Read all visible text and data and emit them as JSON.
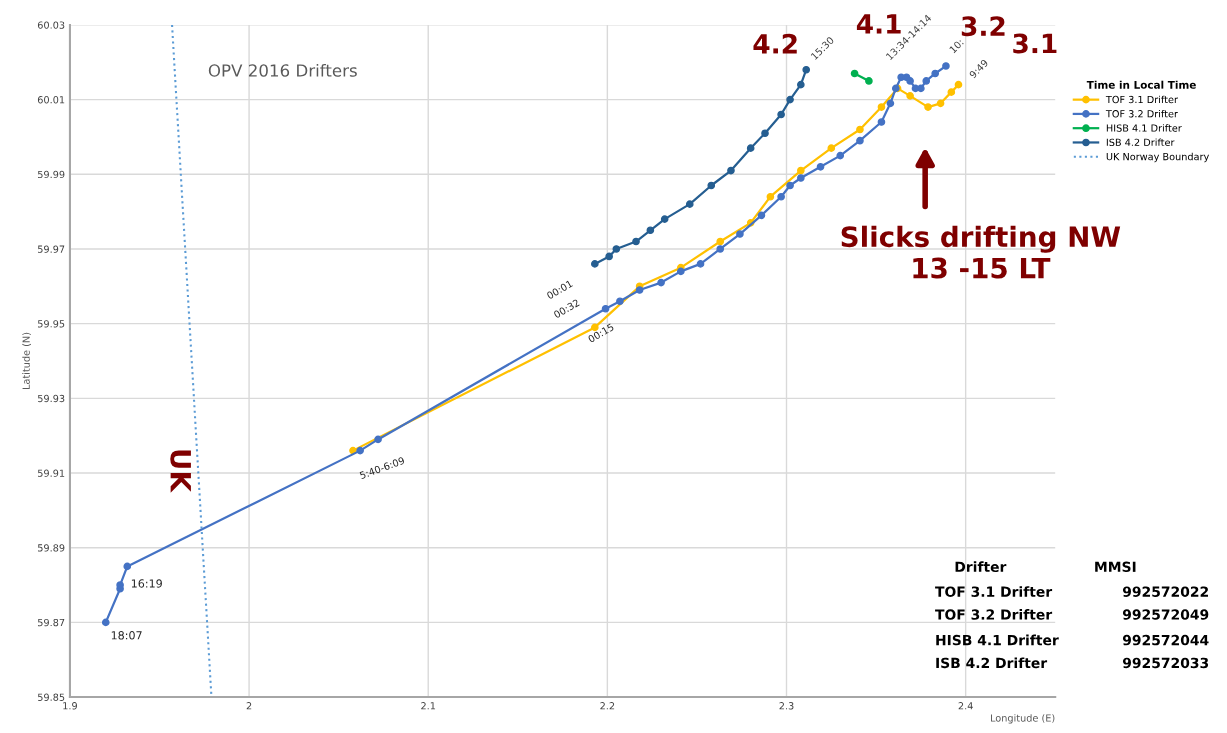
{
  "chart_data": {
    "type": "line",
    "title": "OPV 2016 Drifters",
    "xlabel": "Longitude (E)",
    "ylabel": "Latitude (N)",
    "legend_title": "Time in Local Time",
    "series": [
      {
        "name": "TOF 3.1 Drifter",
        "color": "#ffc000",
        "x": [
          2.058,
          2.193,
          2.218,
          2.241,
          2.263,
          2.28,
          2.291,
          2.308,
          2.325,
          2.341,
          2.353,
          2.362,
          2.369,
          2.379,
          2.386,
          2.392,
          2.396
        ],
        "values": [
          59.916,
          59.949,
          59.96,
          59.965,
          59.972,
          59.977,
          59.984,
          59.991,
          59.997,
          60.002,
          60.008,
          60.013,
          60.011,
          60.008,
          60.009,
          60.012,
          60.014
        ]
      },
      {
        "name": "TOF 3.2 Drifter",
        "color": "#4472c4",
        "x": [
          1.92,
          1.928,
          1.928,
          1.932,
          2.062,
          2.072,
          2.199,
          2.207,
          2.218,
          2.23,
          2.241,
          2.252,
          2.263,
          2.274,
          2.286,
          2.297,
          2.302,
          2.308,
          2.319,
          2.33,
          2.341,
          2.353,
          2.358,
          2.361,
          2.364,
          2.367,
          2.369,
          2.372,
          2.375,
          2.378,
          2.383,
          2.389
        ],
        "values": [
          59.87,
          59.879,
          59.88,
          59.885,
          59.916,
          59.919,
          59.954,
          59.956,
          59.959,
          59.961,
          59.964,
          59.966,
          59.97,
          59.974,
          59.979,
          59.984,
          59.987,
          59.989,
          59.992,
          59.995,
          59.999,
          60.004,
          60.009,
          60.013,
          60.016,
          60.016,
          60.015,
          60.013,
          60.013,
          60.015,
          60.017,
          60.019
        ]
      },
      {
        "name": "HISB 4.1 Drifter",
        "color": "#00b050",
        "x": [
          2.338,
          2.346
        ],
        "values": [
          60.017,
          60.015
        ]
      },
      {
        "name": "ISB 4.2 Drifter",
        "color": "#255e91",
        "x": [
          2.193,
          2.201,
          2.205,
          2.216,
          2.224,
          2.232,
          2.246,
          2.258,
          2.269,
          2.28,
          2.288,
          2.297,
          2.302,
          2.308,
          2.311
        ],
        "values": [
          59.966,
          59.968,
          59.97,
          59.972,
          59.975,
          59.978,
          59.982,
          59.987,
          59.991,
          59.997,
          60.001,
          60.006,
          60.01,
          60.014,
          60.018
        ]
      },
      {
        "name": "UK Norway Boundary",
        "color": "#5b9bd5",
        "marker": "none",
        "line_style": "dotted",
        "x": [
          1.957,
          1.979
        ],
        "values": [
          60.03,
          59.85
        ]
      }
    ],
    "marker": "circle",
    "line_style": "solid",
    "grid": true,
    "legend": "right",
    "xlim": [
      1.9,
      2.45
    ],
    "xticks": [
      1.9,
      2,
      2.1,
      2.2,
      2.3,
      2.4
    ],
    "ylim": [
      59.85,
      60.03
    ],
    "yticks": [
      59.85,
      59.87,
      59.89,
      59.91,
      59.93,
      59.95,
      59.97,
      59.99,
      60.01,
      60.03
    ],
    "annotations": [
      {
        "text": "4.2",
        "x": 2.311,
        "y": 60.018
      },
      {
        "text": "4.1",
        "x": 2.3385,
        "y": 60.017
      },
      {
        "text": "3.2",
        "x": 2.389,
        "y": 60.019
      },
      {
        "text": "3.1",
        "x": 2.396,
        "y": 60.014
      },
      {
        "text": "15:30",
        "x": 2.311,
        "y": 60.018
      },
      {
        "text": "13:34-14:14",
        "x": 2.346,
        "y": 60.015
      },
      {
        "text": "10:",
        "x": 2.389,
        "y": 60.019
      },
      {
        "text": "9:49",
        "x": 2.396,
        "y": 60.014
      },
      {
        "text": "00:01",
        "x": 2.193,
        "y": 59.966
      },
      {
        "text": "00:32",
        "x": 2.193,
        "y": 59.949
      },
      {
        "text": "00:15",
        "x": 2.199,
        "y": 59.954
      },
      {
        "text": "5:40-6:09",
        "x": 2.062,
        "y": 59.916
      },
      {
        "text": "16:19",
        "x": 1.932,
        "y": 59.885
      },
      {
        "text": "18:07",
        "x": 1.92,
        "y": 59.87
      },
      "UK",
      "Slicks drifting NW\n13 -15 LT",
      "Drifter",
      "MMSI",
      "TOF 3.1 Drifter",
      "992572022",
      "TOF 3.2 Drifter",
      "992572049",
      "HISB 4.1 Drifter",
      "992572044",
      "ISB 4.2 Drifter",
      "992572033"
    ]
  }
}
